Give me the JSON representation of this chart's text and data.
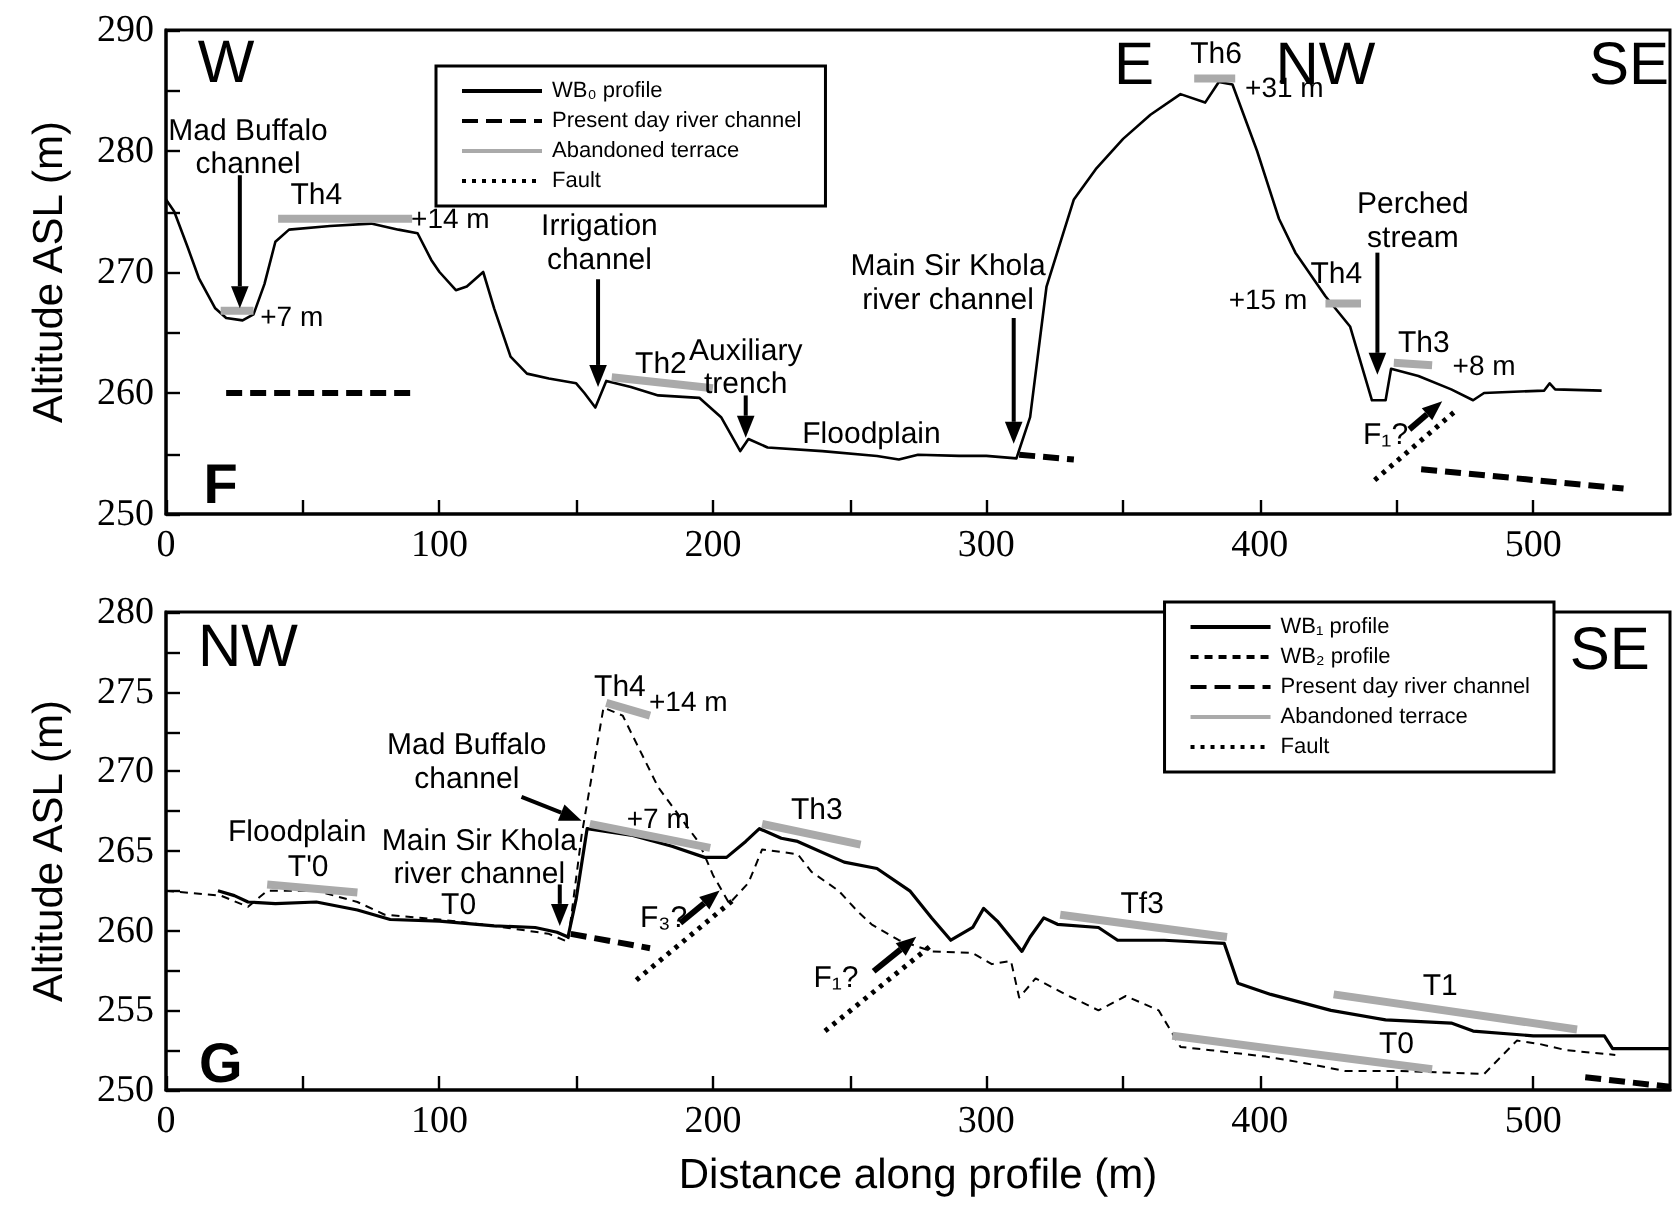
{
  "chart_data": [
    {
      "type": "line",
      "ylabel": "Altitude ASL (m)",
      "xlim": [
        0,
        550
      ],
      "ylim": [
        250,
        290
      ],
      "xticks": [
        0,
        {
          "value": 50,
          "label": null
        },
        100,
        {
          "value": 150,
          "label": null
        },
        200,
        {
          "value": 250,
          "label": null
        },
        300,
        {
          "value": 350,
          "label": null
        },
        400,
        {
          "value": 450,
          "label": null
        },
        500
      ],
      "yticks": [
        250,
        {
          "value": 255,
          "label": null
        },
        260,
        {
          "value": 265,
          "label": null
        },
        270,
        {
          "value": 275,
          "label": null
        },
        280,
        {
          "value": 285,
          "label": null
        },
        290
      ],
      "legend": "top",
      "series": [
        {
          "name": "WB₀ profile",
          "color": "#000000",
          "line_style": "solid",
          "x": [
            0,
            3,
            8,
            12,
            18,
            22,
            28,
            32,
            36,
            40,
            45,
            60,
            75,
            85,
            92,
            97,
            100,
            106,
            110,
            116,
            120,
            126,
            132,
            140,
            150,
            153,
            157,
            161,
            170,
            180,
            195,
            203,
            210,
            213,
            220,
            240,
            260,
            268,
            275,
            290,
            300,
            311,
            316,
            322,
            332,
            340,
            350,
            360,
            371,
            380,
            385,
            390,
            399,
            407,
            413,
            424,
            433,
            441,
            446,
            448,
            458,
            470,
            478,
            482,
            504,
            506,
            508,
            525
          ],
          "values": [
            276,
            275,
            272,
            269.5,
            267,
            266.2,
            266,
            266.5,
            269,
            272.5,
            273.5,
            273.8,
            274,
            273.5,
            273.2,
            271,
            270,
            268.5,
            268.8,
            270,
            267,
            263,
            261.6,
            261.2,
            260.8,
            260,
            258.8,
            261,
            260.5,
            259.8,
            259.6,
            258,
            255.2,
            256.2,
            255.5,
            255.2,
            254.8,
            254.5,
            254.9,
            254.8,
            254.8,
            254.6,
            258,
            268.8,
            276,
            278.5,
            281,
            283,
            284.7,
            284,
            285.7,
            285.5,
            280,
            274.4,
            271.6,
            268,
            265.5,
            259.4,
            259.4,
            262,
            261.4,
            260.3,
            259.4,
            260,
            260.2,
            260.8,
            260.3,
            260.2
          ]
        },
        {
          "name": "Present day river channel",
          "color": "#000000",
          "line_style": "dashed",
          "x": [
            22,
            90
          ],
          "values": [
            260,
            260
          ]
        },
        {
          "color": "#000000",
          "line_style": "dashed",
          "x": [
            312,
            332
          ],
          "values": [
            254.9,
            254.5
          ]
        },
        {
          "color": "#000000",
          "line_style": "dashed",
          "x": [
            459,
            533
          ],
          "values": [
            253.7,
            252.1
          ]
        },
        {
          "name": "Abandoned terrace",
          "color": "#aaaaaa",
          "line_style": "solid",
          "x": [
            20,
            32
          ],
          "values": [
            266.8,
            266.8
          ]
        },
        {
          "color": "#aaaaaa",
          "line_style": "solid",
          "x": [
            41,
            90
          ],
          "values": [
            274.4,
            274.4
          ]
        },
        {
          "color": "#aaaaaa",
          "line_style": "solid",
          "x": [
            163,
            200
          ],
          "values": [
            261.3,
            260.4
          ]
        },
        {
          "color": "#aaaaaa",
          "line_style": "solid",
          "x": [
            376,
            391
          ],
          "values": [
            286,
            286
          ]
        },
        {
          "color": "#aaaaaa",
          "line_style": "solid",
          "x": [
            424,
            437
          ],
          "values": [
            267.4,
            267.4
          ]
        },
        {
          "color": "#aaaaaa",
          "line_style": "solid",
          "x": [
            449,
            463
          ],
          "values": [
            262.5,
            262.3
          ]
        },
        {
          "name": "Fault",
          "color": "#000000",
          "line_style": "dotted",
          "x": [
            442,
            472
          ],
          "values": [
            252.8,
            258.6
          ]
        }
      ],
      "annotations": [
        "W",
        "E",
        "NW",
        "SE",
        "F",
        "Mad Buffalo\nchannel",
        "Irrigation\nchannel",
        "Auxiliary\ntrench",
        "Main Sir Khola\nriver channel",
        "Perched\nstream",
        "Th4",
        "+14 m",
        "+7 m",
        "Th2",
        "Floodplain",
        "Th6",
        "+31 m",
        "Th4",
        "+15 m",
        "Th3",
        "+8 m",
        "F₁?"
      ]
    },
    {
      "type": "line",
      "xlabel": "Distance along profile (m)",
      "ylabel": "Altitude ASL (m)",
      "xlim": [
        0,
        550
      ],
      "ylim": [
        250,
        280
      ],
      "xticks": [
        0,
        {
          "value": 50,
          "label": null
        },
        100,
        {
          "value": 150,
          "label": null
        },
        200,
        {
          "value": 250,
          "label": null
        },
        300,
        {
          "value": 350,
          "label": null
        },
        400,
        {
          "value": 450,
          "label": null
        },
        500
      ],
      "yticks": [
        250,
        {
          "value": 252.5,
          "label": null
        },
        255,
        {
          "value": 257.5,
          "label": null
        },
        260,
        {
          "value": 262.5,
          "label": null
        },
        265,
        {
          "value": 267.5,
          "label": null
        },
        270,
        {
          "value": 272.5,
          "label": null
        },
        275,
        {
          "value": 277.5,
          "label": null
        },
        280
      ],
      "legend": "top right",
      "series": [
        {
          "name": "WB₁ profile",
          "color": "#000000",
          "line_style": "solid",
          "x": [
            19,
            25,
            30,
            40,
            55,
            70,
            82,
            100,
            120,
            135,
            143,
            147,
            150,
            154,
            170,
            185,
            197,
            205,
            212,
            217,
            225,
            231,
            248,
            260,
            272,
            280,
            287,
            295,
            299,
            304,
            313,
            316,
            321,
            326,
            341,
            348,
            365,
            387,
            392,
            404,
            426,
            446,
            470,
            478,
            500,
            526,
            529,
            550
          ],
          "values": [
            262.5,
            262.2,
            261.8,
            261.7,
            261.8,
            261.3,
            260.7,
            260.6,
            260.3,
            260.2,
            259.9,
            259.6,
            262,
            266.4,
            266,
            265.3,
            264.6,
            264.6,
            265.6,
            266.4,
            265.8,
            265.6,
            264.3,
            263.9,
            262.5,
            260.8,
            259.4,
            260.2,
            261.4,
            260.6,
            258.7,
            259.6,
            260.8,
            260.4,
            260.2,
            259.4,
            259.4,
            259.2,
            256.7,
            256,
            255,
            254.4,
            254.2,
            253.7,
            253.4,
            253.4,
            252.6,
            252.6
          ]
        },
        {
          "name": "WB₂ profile",
          "color": "#000000",
          "line_style": "dashed",
          "x": [
            0,
            20,
            30,
            37,
            55,
            70,
            80,
            100,
            120,
            140,
            147,
            152,
            160,
            167,
            180,
            195,
            200,
            206,
            213,
            218,
            231,
            236,
            246,
            253,
            258,
            268,
            280,
            295,
            302,
            309,
            312,
            318,
            329,
            341,
            351,
            363,
            371,
            382,
            402,
            416,
            431,
            451,
            482,
            494,
            502,
            512,
            530
          ],
          "values": [
            262.5,
            262.2,
            261.5,
            262.5,
            262.5,
            261.8,
            261,
            260.7,
            260.3,
            259.8,
            259.3,
            266,
            274,
            273.5,
            269,
            265.5,
            263.5,
            261.7,
            263,
            265.1,
            264.8,
            263.7,
            262.5,
            261.2,
            260.4,
            259.4,
            258.7,
            258.6,
            257.9,
            258.1,
            255.8,
            257,
            256,
            255,
            255.9,
            255,
            252.7,
            252.5,
            252.1,
            251.7,
            251.2,
            251.2,
            251,
            253.1,
            252.9,
            252.5,
            252.2
          ]
        },
        {
          "name": "Present day river channel",
          "color": "#000000",
          "line_style": "dashed",
          "x": [
            148,
            177
          ],
          "values": [
            259.8,
            258.9
          ]
        },
        {
          "color": "#000000",
          "line_style": "dashed",
          "x": [
            519,
            550
          ],
          "values": [
            250.8,
            250.2
          ]
        },
        {
          "name": "Abandoned terrace",
          "color": "#aaaaaa",
          "line_style": "solid",
          "x": [
            37,
            70
          ],
          "values": [
            262.9,
            262.4
          ]
        },
        {
          "color": "#aaaaaa",
          "line_style": "solid",
          "x": [
            161,
            177
          ],
          "values": [
            274.3,
            273.5
          ]
        },
        {
          "color": "#aaaaaa",
          "line_style": "solid",
          "x": [
            155,
            199
          ],
          "values": [
            266.7,
            265.2
          ]
        },
        {
          "color": "#aaaaaa",
          "line_style": "solid",
          "x": [
            218,
            254
          ],
          "values": [
            266.7,
            265.4
          ]
        },
        {
          "color": "#aaaaaa",
          "line_style": "solid",
          "x": [
            327,
            388
          ],
          "values": [
            261,
            259.6
          ]
        },
        {
          "color": "#aaaaaa",
          "line_style": "solid",
          "x": [
            427,
            516
          ],
          "values": [
            256,
            253.8
          ]
        },
        {
          "color": "#aaaaaa",
          "line_style": "solid",
          "x": [
            368,
            463
          ],
          "values": [
            253.4,
            251.3
          ]
        },
        {
          "name": "Fault",
          "color": "#000000",
          "line_style": "dotted",
          "x": [
            172,
            208
          ],
          "values": [
            256.9,
            262
          ]
        },
        {
          "color": "#000000",
          "line_style": "dotted",
          "x": [
            241,
            280
          ],
          "values": [
            253.7,
            259.1
          ]
        }
      ],
      "annotations": [
        "NW",
        "SE",
        "G",
        "Main Sir Khola\nriver channel",
        "Mad Buffalo\nchannel",
        "Floodplain",
        "T'0",
        "T0",
        "Th4",
        "+14 m",
        "+7 m",
        "Th3",
        "F₃?",
        "F₁?",
        "Tf3",
        "T1",
        "T0"
      ]
    }
  ]
}
